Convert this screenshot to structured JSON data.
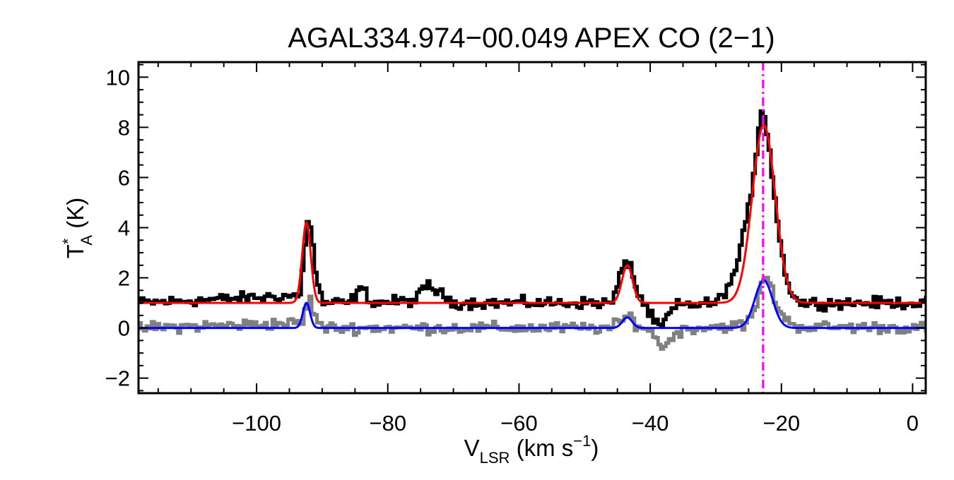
{
  "chart_data": {
    "type": "line",
    "title": "AGAL334.974−00.049  APEX CO (2−1)",
    "xlabel": {
      "main": "V",
      "sub": "LSR",
      "rest": " (km s",
      "sup": "−1",
      "end": ")"
    },
    "ylabel": {
      "main": "T",
      "sup": "*",
      "sub": "A",
      "rest": " (K)"
    },
    "xlim": [
      -118,
      2
    ],
    "ylim": [
      -2.6,
      10.6
    ],
    "xticks": [
      -100,
      -80,
      -60,
      -40,
      -20,
      0
    ],
    "xtick_labels": [
      "−100",
      "−80",
      "−60",
      "−40",
      "−20",
      "0"
    ],
    "yticks": [
      -2,
      0,
      2,
      4,
      6,
      8,
      10
    ],
    "ytick_labels": [
      "−2",
      "0",
      "2",
      "4",
      "6",
      "8",
      "10"
    ],
    "grid": false,
    "vline": {
      "x": -22.8,
      "color": "#ff00ff",
      "style": "dash-dot"
    },
    "series": [
      {
        "kind": "spectrum-offset",
        "color": "#000000",
        "x": [
          -118,
          -93.5,
          -92.8,
          -92.3,
          -91.8,
          -91,
          -90,
          -86,
          -84.2,
          -82.5,
          -76,
          -74,
          -72.5,
          -70,
          -46,
          -44.2,
          -43.3,
          -42.3,
          -41,
          -39.5,
          -38.5,
          -37.5,
          -36,
          -30,
          -27.5,
          -25.5,
          -24,
          -23.3,
          -22.8,
          -22.2,
          -21.2,
          -20.2,
          -19,
          -17.5,
          2
        ],
        "y": [
          1.0,
          1.3,
          3.4,
          4.6,
          3.7,
          1.8,
          1.0,
          1.0,
          1.6,
          1.0,
          1.1,
          1.75,
          1.4,
          1.0,
          1.0,
          2.5,
          2.7,
          1.5,
          0.9,
          0.2,
          0.0,
          0.5,
          0.9,
          1.0,
          2.0,
          4.2,
          7.0,
          8.8,
          8.5,
          7.5,
          5.2,
          3.0,
          1.6,
          1.0,
          1.0
        ]
      },
      {
        "kind": "fit",
        "color": "#ff0000",
        "baseline": 1.0,
        "components": [
          {
            "center": -92.4,
            "amplitude": 3.2,
            "sigma": 0.65
          },
          {
            "center": -43.5,
            "amplitude": 1.5,
            "sigma": 0.8
          },
          {
            "center": -22.7,
            "amplitude": 7.1,
            "sigma": 1.75
          }
        ]
      },
      {
        "kind": "spectrum",
        "color": "#808080",
        "x": [
          -118,
          -93.2,
          -92.6,
          -92.0,
          -91.2,
          -90.0,
          -46.0,
          -44.0,
          -43.3,
          -42.5,
          -40.5,
          -39.0,
          -38.2,
          -37.5,
          -36.5,
          -34.0,
          -26.0,
          -24.5,
          -23.5,
          -22.8,
          -22.0,
          -21.0,
          -19.5,
          -17.5,
          2
        ],
        "y": [
          0.0,
          0.2,
          0.9,
          1.1,
          0.4,
          0.0,
          0.0,
          0.4,
          0.5,
          0.2,
          -0.1,
          -0.4,
          -0.9,
          -0.6,
          -0.2,
          0.0,
          0.1,
          0.5,
          1.4,
          2.1,
          1.8,
          1.0,
          0.3,
          0.05,
          0.0
        ]
      },
      {
        "kind": "fit",
        "color": "#0000ff",
        "baseline": 0.0,
        "components": [
          {
            "center": -92.4,
            "amplitude": 1.0,
            "sigma": 0.55
          },
          {
            "center": -43.5,
            "amplitude": 0.42,
            "sigma": 0.75
          },
          {
            "center": -22.7,
            "amplitude": 1.9,
            "sigma": 1.35
          }
        ]
      }
    ]
  }
}
